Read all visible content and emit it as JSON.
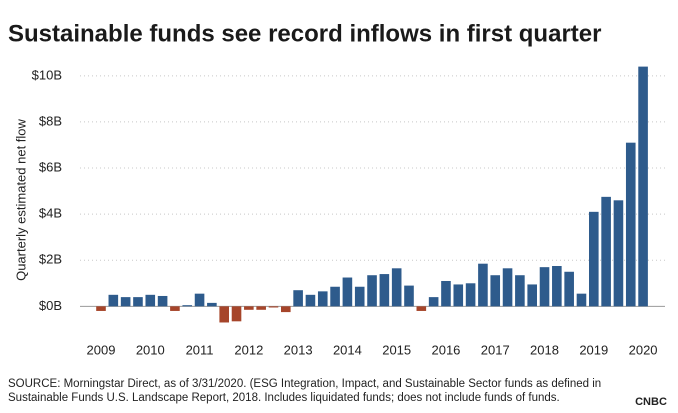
{
  "chart_data": {
    "type": "bar",
    "title": "Sustainable funds see record inflows in first quarter",
    "ylabel": "Quarterly estimated net flow",
    "source_lines": [
      "SOURCE: Morningstar Direct, as of 3/31/2020. (ESG Integration, Impact, and Sustainable Sector funds as defined in",
      "Sustainable Funds U.S. Landscape Report, 2018. Includes liquidated funds; does not include funds of funds."
    ],
    "logo": "CNBC",
    "categories": [
      "2009",
      null,
      null,
      null,
      "2010",
      null,
      null,
      null,
      "2011",
      null,
      null,
      null,
      "2012",
      null,
      null,
      null,
      "2013",
      null,
      null,
      null,
      "2014",
      null,
      null,
      null,
      "2015",
      null,
      null,
      null,
      "2016",
      null,
      null,
      null,
      "2017",
      null,
      null,
      null,
      "2018",
      null,
      null,
      null,
      "2019",
      null,
      null,
      null,
      "2020"
    ],
    "values": [
      -0.2,
      0.5,
      0.4,
      0.4,
      0.5,
      0.45,
      -0.2,
      0.05,
      0.55,
      0.15,
      -0.7,
      -0.65,
      -0.15,
      -0.15,
      -0.05,
      -0.25,
      0.7,
      0.5,
      0.65,
      0.85,
      1.25,
      0.85,
      1.35,
      1.4,
      1.65,
      0.9,
      -0.2,
      0.4,
      1.1,
      0.95,
      1.0,
      1.85,
      1.35,
      1.65,
      1.35,
      0.95,
      1.7,
      1.75,
      1.5,
      0.55,
      4.1,
      4.75,
      4.6,
      7.1,
      10.4
    ],
    "positive_color": "#2e5b8c",
    "negative_color": "#a6452a",
    "ylim": [
      -1.2,
      10.6
    ],
    "yticks": [
      {
        "value": 0,
        "label": "$0B"
      },
      {
        "value": 2,
        "label": "$2B"
      },
      {
        "value": 4,
        "label": "$4B"
      },
      {
        "value": 6,
        "label": "$6B"
      },
      {
        "value": 8,
        "label": "$8B"
      },
      {
        "value": 10,
        "label": "$10B"
      }
    ],
    "grid": true
  }
}
